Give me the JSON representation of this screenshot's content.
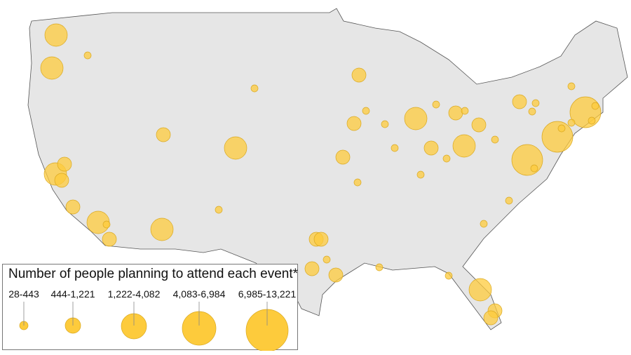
{
  "legend": {
    "title": "Number of people planning to attend each event*",
    "bins": [
      {
        "label": "28-443"
      },
      {
        "label": "444-1,221"
      },
      {
        "label": "1,222-4,082"
      },
      {
        "label": "4,083-6,984"
      },
      {
        "label": "6,985-13,221"
      }
    ]
  },
  "colors": {
    "land": "#e6e6e6",
    "border": "#555555",
    "bubble": "#fdcb3c",
    "bubble_stroke": "#d9a820"
  },
  "event_bubble_bins": [
    2,
    0,
    2,
    1,
    2,
    2,
    1,
    1,
    1,
    2,
    0,
    1,
    2,
    0,
    0,
    1,
    0,
    1,
    0,
    1,
    0,
    0,
    2,
    0,
    1,
    0,
    1,
    1,
    2,
    0,
    0,
    0,
    1,
    0,
    0,
    0,
    3,
    3,
    0,
    3,
    0,
    0,
    0,
    0,
    0,
    0,
    1,
    1,
    1,
    0,
    1,
    0,
    0,
    2,
    1,
    1
  ]
}
